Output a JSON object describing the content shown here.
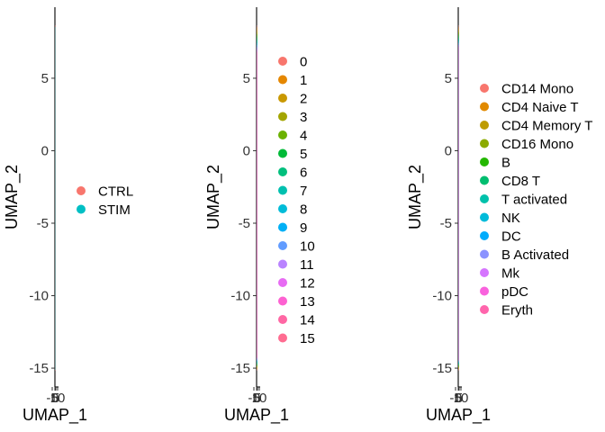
{
  "chart_data": [
    {
      "type": "scatter",
      "title": "",
      "xlabel": "UMAP_1",
      "ylabel": "UMAP_2",
      "ylim": [
        -16.3,
        9.9
      ],
      "xlim": [
        -0.2,
        0.2
      ],
      "yticks": [
        5,
        0,
        -5,
        -10,
        -15
      ],
      "ytick_labels": [
        "5",
        "0",
        "-5",
        "-10",
        "-15"
      ],
      "xtick_labels": [
        "-5",
        "0",
        "5",
        "10"
      ],
      "grid": false,
      "legend": {
        "placement": "right",
        "entries": [
          {
            "label": "CTRL",
            "color": "#F8766D"
          },
          {
            "label": "STIM",
            "color": "#00BFC4"
          }
        ]
      }
    },
    {
      "type": "scatter",
      "title": "",
      "xlabel": "UMAP_1",
      "ylabel": "UMAP_2",
      "ylim": [
        -16.3,
        9.9
      ],
      "xlim": [
        -0.2,
        0.2
      ],
      "yticks": [
        5,
        0,
        -5,
        -10,
        -15
      ],
      "ytick_labels": [
        "5",
        "0",
        "-5",
        "-10",
        "-15"
      ],
      "xtick_labels": [
        "-5",
        "0",
        "5",
        "10"
      ],
      "grid": false,
      "legend": {
        "placement": "right",
        "entries": [
          {
            "label": "0",
            "color": "#F8766D"
          },
          {
            "label": "1",
            "color": "#E58700"
          },
          {
            "label": "2",
            "color": "#C99800"
          },
          {
            "label": "3",
            "color": "#A3A500"
          },
          {
            "label": "4",
            "color": "#6BB100"
          },
          {
            "label": "5",
            "color": "#00BA38"
          },
          {
            "label": "6",
            "color": "#00BF7D"
          },
          {
            "label": "7",
            "color": "#00C0AF"
          },
          {
            "label": "8",
            "color": "#00BCD8"
          },
          {
            "label": "9",
            "color": "#00B0F6"
          },
          {
            "label": "10",
            "color": "#619CFF"
          },
          {
            "label": "11",
            "color": "#B983FF"
          },
          {
            "label": "12",
            "color": "#E76BF3"
          },
          {
            "label": "13",
            "color": "#FD61D1"
          },
          {
            "label": "14",
            "color": "#FF67A4"
          },
          {
            "label": "15",
            "color": "#FF6C91"
          }
        ]
      }
    },
    {
      "type": "scatter",
      "title": "",
      "xlabel": "UMAP_1",
      "ylabel": "UMAP_2",
      "ylim": [
        -16.3,
        9.9
      ],
      "xlim": [
        -0.2,
        0.2
      ],
      "yticks": [
        5,
        0,
        -5,
        -10,
        -15
      ],
      "ytick_labels": [
        "5",
        "0",
        "-5",
        "-10",
        "-15"
      ],
      "xtick_labels": [
        "-5",
        "0",
        "5",
        "10"
      ],
      "grid": false,
      "legend": {
        "placement": "right",
        "entries": [
          {
            "label": "CD14 Mono",
            "color": "#F8766D"
          },
          {
            "label": "CD4 Naive T",
            "color": "#E18A00"
          },
          {
            "label": "CD4 Memory T",
            "color": "#BE9C00"
          },
          {
            "label": "CD16 Mono",
            "color": "#8CAB00"
          },
          {
            "label": "B",
            "color": "#24B700"
          },
          {
            "label": "CD8 T",
            "color": "#00BE70"
          },
          {
            "label": "T activated",
            "color": "#00C1AB"
          },
          {
            "label": "NK",
            "color": "#00BBDA"
          },
          {
            "label": "DC",
            "color": "#00ACFC"
          },
          {
            "label": "B Activated",
            "color": "#8B93FF"
          },
          {
            "label": "Mk",
            "color": "#D575FE"
          },
          {
            "label": "pDC",
            "color": "#F962DD"
          },
          {
            "label": "Eryth",
            "color": "#FF65AC"
          }
        ]
      }
    }
  ]
}
